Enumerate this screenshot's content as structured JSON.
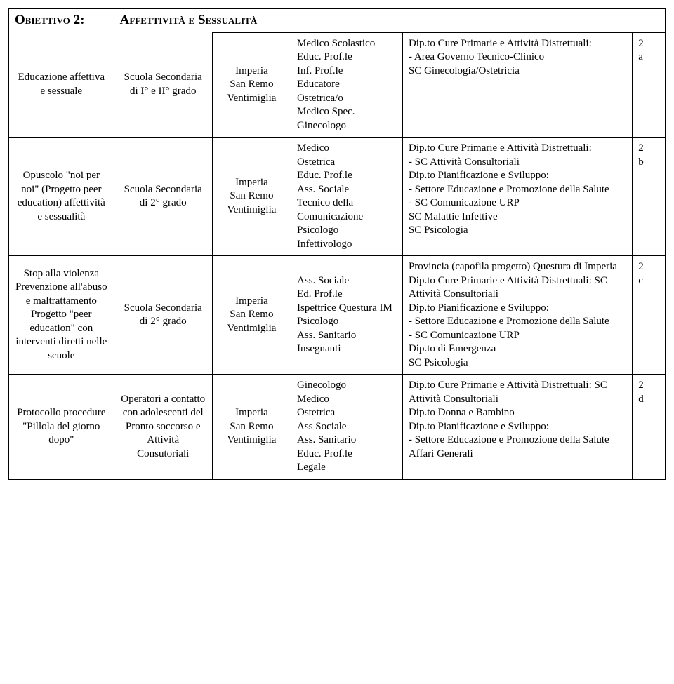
{
  "header": {
    "objective_label": "Obiettivo 2:",
    "objective_title": "Affettività e Sessualità"
  },
  "rows": [
    {
      "c1": "Educazione affettiva e sessuale",
      "c2": "Scuola Secondaria di I° e II° grado",
      "c3": "Imperia\nSan Remo\nVentimiglia",
      "c4": "Medico Scolastico\nEduc. Prof.le\nInf. Prof.le\nEducatore\nOstetrica/o\nMedico Spec.\nGinecologo",
      "c5": "Dip.to Cure Primarie e Attività Distrettuali:\n- Area Governo Tecnico-Clinico\nSC Ginecologia/Ostetricia",
      "c6": "2\na"
    },
    {
      "c1": "Opuscolo \"noi per noi\" (Progetto peer education) affettività e sessualità",
      "c2": "Scuola Secondaria di 2° grado",
      "c3": "Imperia\nSan Remo\nVentimiglia",
      "c4": "Medico\nOstetrica\nEduc. Prof.le\nAss. Sociale\nTecnico della Comunicazione\nPsicologo\nInfettivologo",
      "c5": "Dip.to Cure Primarie e Attività Distrettuali:\n- SC Attività Consultoriali\nDip.to Pianificazione e Sviluppo:\n- Settore Educazione e Promozione della Salute\n - SC Comunicazione URP\nSC Malattie Infettive\nSC Psicologia",
      "c6": "2\nb"
    },
    {
      "c1": "Stop alla violenza Prevenzione all'abuso e maltrattamento Progetto \"peer education\" con interventi diretti nelle scuole",
      "c2": "Scuola Secondaria di 2° grado",
      "c3": "Imperia\nSan Remo\nVentimiglia",
      "c4": "Ass. Sociale\nEd. Prof.le\nIspettrice Questura IM\nPsicologo\nAss. Sanitario\nInsegnanti",
      "c5": "Provincia (capofila progetto) Questura di Imperia\nDip.to Cure Primarie e Attività Distrettuali: SC Attività Consultoriali\nDip.to Pianificazione e Sviluppo:\n- Settore Educazione e Promozione della Salute\n- SC Comunicazione URP\nDip.to di Emergenza\nSC Psicologia",
      "c6": "2\nc"
    },
    {
      "c1": "Protocollo procedure \"Pillola del giorno dopo\"",
      "c2": "Operatori a contatto con adolescenti del Pronto soccorso e Attività Consutoriali",
      "c3": "Imperia\nSan Remo\nVentimiglia",
      "c4": "Ginecologo\nMedico\nOstetrica\nAss Sociale\nAss. Sanitario\nEduc. Prof.le\n Legale",
      "c5": "Dip.to Cure Primarie e Attività Distrettuali: SC Attività Consultoriali\nDip.to Donna e Bambino\nDip.to Pianificazione e Sviluppo:\n- Settore Educazione e Promozione della Salute\nAffari Generali",
      "c6": "2\nd"
    }
  ]
}
